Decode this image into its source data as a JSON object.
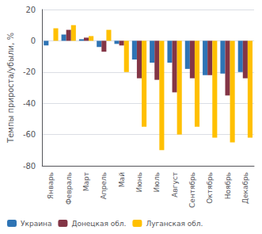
{
  "chart_data": {
    "type": "bar",
    "categories": [
      "Январь",
      "Февраль",
      "Март",
      "Апрель",
      "Май",
      "Июнь",
      "Июль",
      "Август",
      "Сентябрь",
      "Октябрь",
      "Ноябрь",
      "Декабрь"
    ],
    "series": [
      {
        "name": "Украина",
        "color": "#2e74b5",
        "values": [
          -3,
          4,
          1,
          -4,
          -2,
          -12,
          -14,
          -14,
          -18,
          -22,
          -21,
          -20
        ]
      },
      {
        "name": "Донецкая обл.",
        "color": "#833546",
        "values": [
          0,
          7,
          2,
          -7,
          -3,
          -24,
          -25,
          -33,
          -24,
          -22,
          -35,
          -24
        ]
      },
      {
        "name": "Луганская обл.",
        "color": "#ffc000",
        "values": [
          8,
          10,
          3,
          7,
          -20,
          -55,
          -70,
          -60,
          -55,
          -62,
          -65,
          -62
        ]
      }
    ],
    "ylabel": "Темпы прироста/убыли, %",
    "ylim": [
      -80,
      20
    ],
    "yticks": [
      -80,
      -60,
      -40,
      -20,
      0,
      20
    ],
    "grid": true,
    "legend": "lower left"
  }
}
